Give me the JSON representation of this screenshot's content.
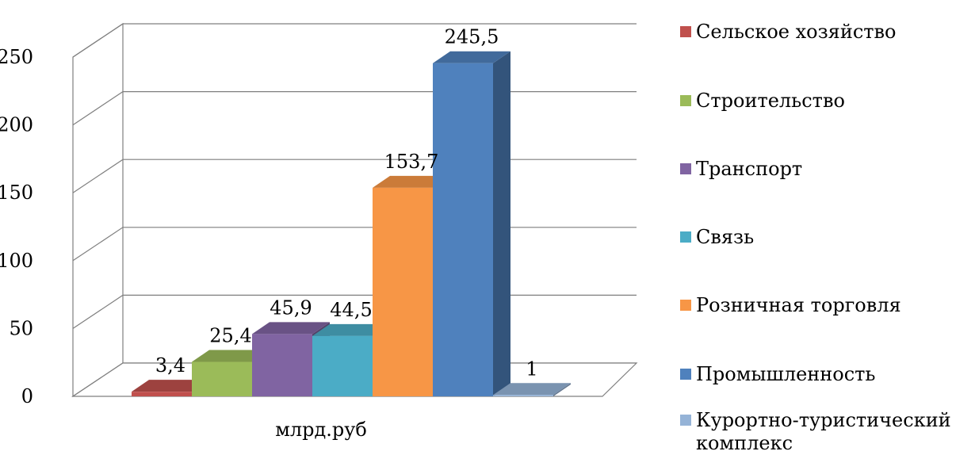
{
  "chart_data": {
    "type": "bar",
    "categories": [
      "млрд.руб"
    ],
    "series": [
      {
        "name": "Сельское хозяйство",
        "values": [
          3.4
        ],
        "label": "3,4",
        "color": "#C0504D"
      },
      {
        "name": "Строительство",
        "values": [
          25.4
        ],
        "label": "25,4",
        "color": "#9BBB59"
      },
      {
        "name": "Транспорт",
        "values": [
          45.9
        ],
        "label": "45,9",
        "color": "#8064A2"
      },
      {
        "name": "Связь",
        "values": [
          44.5
        ],
        "label": "44,5",
        "color": "#4BACC6"
      },
      {
        "name": "Розничная торговля",
        "values": [
          153.7
        ],
        "label": "153,7",
        "color": "#F79646"
      },
      {
        "name": "Промышленность",
        "values": [
          245.5
        ],
        "label": "245,5",
        "color": "#4F81BD"
      },
      {
        "name": "Курортно-туристический комплекс",
        "values": [
          1
        ],
        "label": "1",
        "color": "#95B3D7"
      }
    ],
    "xlabel": "млрд.руб",
    "ylim": [
      0,
      250
    ],
    "yticks": [
      "0",
      "50",
      "100",
      "150",
      "200",
      "250"
    ],
    "grid": true,
    "legend": "right",
    "style": "3d-clustered-column"
  }
}
